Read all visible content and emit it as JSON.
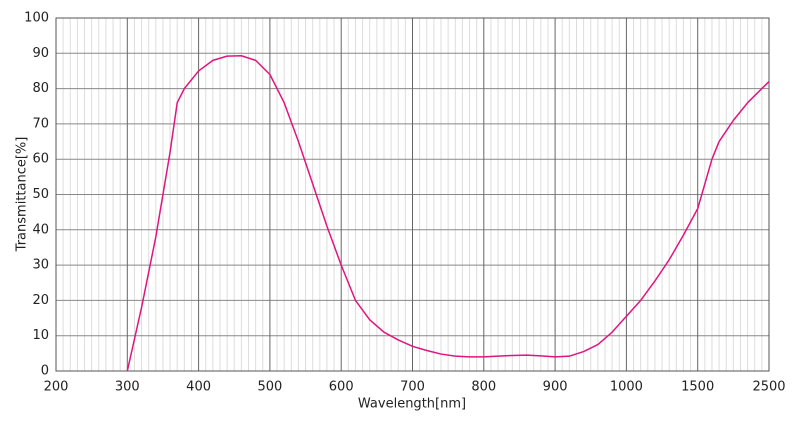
{
  "chart_data": {
    "type": "line",
    "x_label": "Wavelength[nm]",
    "y_label": "Transmittance[%]",
    "xlim": [
      200,
      2500
    ],
    "xticks": [
      200,
      300,
      400,
      500,
      600,
      700,
      800,
      900,
      1000,
      1500,
      2500
    ],
    "ylim": [
      0,
      100
    ],
    "yticks": [
      0,
      10,
      20,
      30,
      40,
      50,
      60,
      70,
      80,
      90,
      100
    ],
    "grid": true,
    "x": [
      300,
      320,
      340,
      360,
      370,
      380,
      400,
      420,
      440,
      460,
      480,
      500,
      520,
      540,
      560,
      580,
      600,
      620,
      640,
      660,
      680,
      700,
      720,
      740,
      760,
      780,
      800,
      820,
      840,
      860,
      880,
      900,
      920,
      940,
      960,
      980,
      1000,
      1100,
      1200,
      1300,
      1400,
      1500,
      1600,
      1700,
      1800,
      2000,
      2200,
      2500
    ],
    "series": [
      {
        "color": "#e0157f",
        "values": [
          0,
          18,
          38,
          62,
          76,
          80,
          85,
          88,
          89.2,
          89.3,
          88,
          84,
          76,
          65,
          53,
          41,
          30,
          20,
          14.5,
          11,
          8.8,
          7,
          5.8,
          4.8,
          4.2,
          4,
          4,
          4.2,
          4.4,
          4.5,
          4.3,
          4,
          4.2,
          5.5,
          7.5,
          11,
          15.5,
          20,
          25.5,
          31.5,
          38.5,
          46,
          53,
          60,
          65,
          71,
          76,
          82
        ]
      }
    ]
  }
}
